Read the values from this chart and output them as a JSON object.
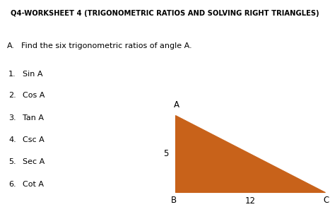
{
  "title": "Q4-WORKSHEET 4 (TRIGONOMETRIC RATIOS AND SOLVING RIGHT TRIANGLES)",
  "section_label": "A.",
  "section_text": "Find the six trigonometric ratios of angle A.",
  "items": [
    [
      "1.",
      "Sin A"
    ],
    [
      "2.",
      "Cos A"
    ],
    [
      "3.",
      "Tan A"
    ],
    [
      "4.",
      "Csc A"
    ],
    [
      "5.",
      "Sec A"
    ],
    [
      "6.",
      "Cot A"
    ]
  ],
  "triangle_color": "#c8621a",
  "bg_color": "#ffffff",
  "title_fontsize": 7.2,
  "text_fontsize": 8.0,
  "label_fontsize": 8.5,
  "tri_label_fontsize": 8.5
}
